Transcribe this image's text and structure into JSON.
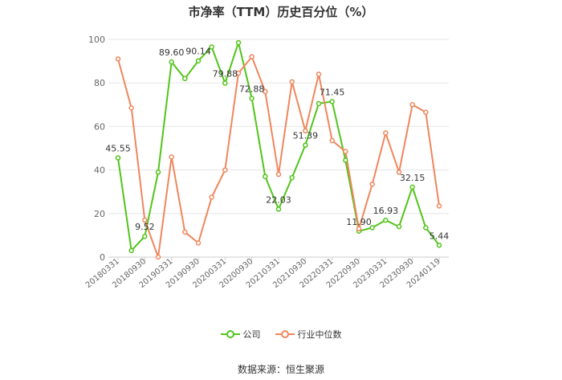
{
  "chart_data": {
    "type": "line",
    "title": "市净率（TTM）历史百分位（%）",
    "xlabel": "",
    "ylabel": "",
    "ylim": [
      0,
      100
    ],
    "yticks": [
      0,
      20,
      40,
      60,
      80,
      100
    ],
    "grid": true,
    "legend_position": "bottom",
    "x_tick_labels": [
      "20180331",
      "20180930",
      "20190331",
      "20190930",
      "20200331",
      "20200930",
      "20210331",
      "20210930",
      "20220331",
      "20220930",
      "20230331",
      "20230930",
      "20240119"
    ],
    "x": [
      "20180331",
      "20180630",
      "20180930",
      "20181231",
      "20190331",
      "20190630",
      "20190930",
      "20191231",
      "20200331",
      "20200630",
      "20200930",
      "20201231",
      "20210331",
      "20210630",
      "20210930",
      "20211231",
      "20220331",
      "20220630",
      "20220930",
      "20221231",
      "20230331",
      "20230630",
      "20230930",
      "20231231",
      "20240119"
    ],
    "series": [
      {
        "name": "公司",
        "color": "#52c41a",
        "values": [
          45.55,
          3,
          9.52,
          39,
          89.6,
          82,
          90.14,
          96.5,
          79.88,
          98.5,
          72.88,
          37,
          22.03,
          36.5,
          51.39,
          70.5,
          71.45,
          44.5,
          11.9,
          13.5,
          16.93,
          14,
          32.15,
          13.5,
          5.44
        ],
        "point_labels": {
          "0": "45.55",
          "2": "9.52",
          "4": "89.60",
          "6": "90.14",
          "8": "79.88",
          "10": "72.88",
          "12": "22.03",
          "14": "51.39",
          "16": "71.45",
          "18": "11.90",
          "20": "16.93",
          "22": "32.15",
          "24": "5.44"
        }
      },
      {
        "name": "行业中位数",
        "color": "#f0865c",
        "values": [
          91,
          68.5,
          17,
          0,
          46,
          11.5,
          6.5,
          27.5,
          40,
          84.5,
          92,
          76,
          38,
          80.5,
          58,
          84,
          53.5,
          48.5,
          13,
          33.5,
          57,
          39,
          70,
          66.5,
          23.5
        ]
      }
    ]
  },
  "source_text": "数据来源：恒生聚源"
}
